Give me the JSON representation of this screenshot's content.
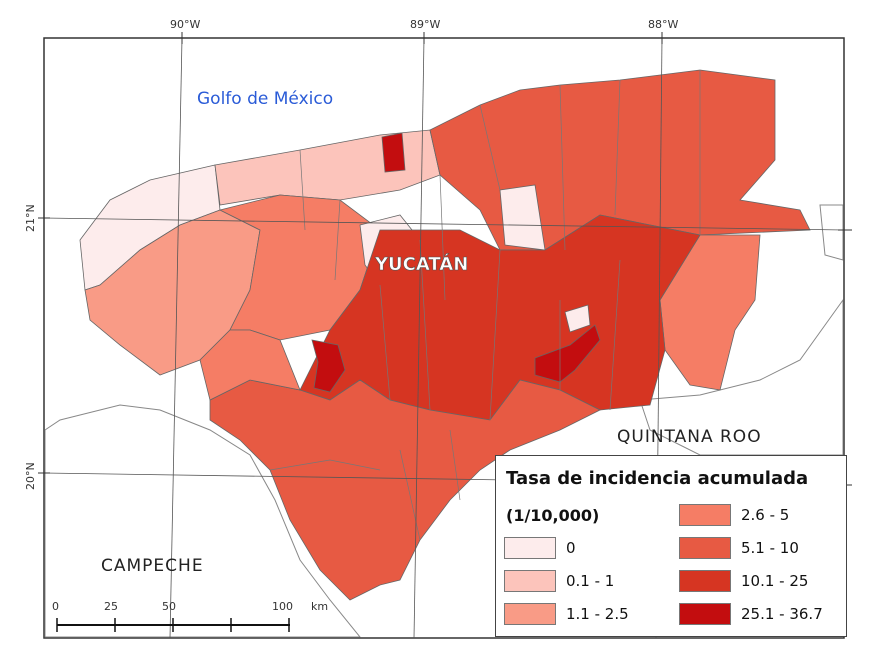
{
  "map": {
    "graticule": {
      "longitudes": [
        "90°W",
        "89°W",
        "88°W"
      ],
      "latitudes": [
        "21°N",
        "20°N"
      ]
    },
    "labels": {
      "gulf": "Golfo de México",
      "yucatan": "YUCATÁN",
      "quintana_roo": "QUINTANA ROO",
      "campeche": "CAMPECHE"
    },
    "scale_bar": {
      "ticks": [
        "0",
        "25",
        "50",
        "100"
      ],
      "unit": "km"
    },
    "colors": {
      "class0": "#fdecec",
      "class1": "#fcc4bb",
      "class2": "#f99b86",
      "class3": "#f57d65",
      "class4": "#e75a43",
      "class5": "#d63522",
      "class6": "#c30d0f",
      "outline": "#666666",
      "other_states": "#ffffff"
    }
  },
  "legend": {
    "title": "Tasa de incidencia acumulada",
    "subtitle": "(1/10,000)",
    "items": [
      {
        "label": "0",
        "color": "#fdecec"
      },
      {
        "label": "0.1 - 1",
        "color": "#fcc4bb"
      },
      {
        "label": "1.1 - 2.5",
        "color": "#f99b86"
      },
      {
        "label": "2.6 - 5",
        "color": "#f57d65"
      },
      {
        "label": "5.1 - 10",
        "color": "#e75a43"
      },
      {
        "label": "10.1 - 25",
        "color": "#d63522"
      },
      {
        "label": "25.1 - 36.7",
        "color": "#c30d0f"
      }
    ]
  }
}
